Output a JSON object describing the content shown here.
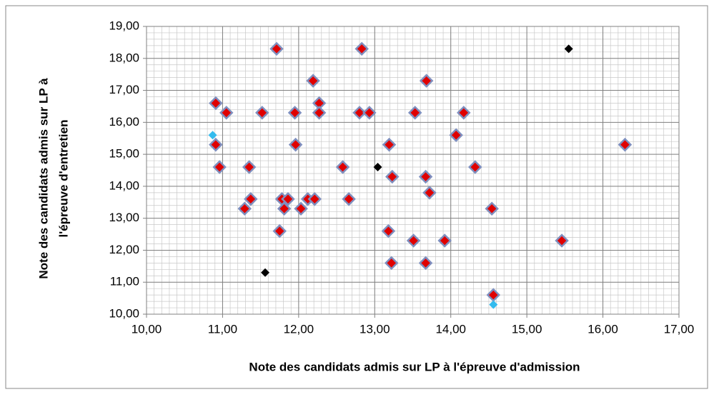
{
  "chart_data": {
    "type": "scatter",
    "xlabel": "Note des candidats admis sur LP à l'épreuve d'admission",
    "ylabel": [
      "Note des candidats admis sur LP à",
      "l'épreuve d'entretien"
    ],
    "xlim": [
      10,
      17
    ],
    "ylim": [
      10,
      19
    ],
    "xticks": [
      {
        "value": 10,
        "label": "10,00"
      },
      {
        "value": 11,
        "label": "11,00"
      },
      {
        "value": 12,
        "label": "12,00"
      },
      {
        "value": 13,
        "label": "13,00"
      },
      {
        "value": 14,
        "label": "14,00"
      },
      {
        "value": 15,
        "label": "15,00"
      },
      {
        "value": 16,
        "label": "16,00"
      },
      {
        "value": 17,
        "label": "17,00"
      }
    ],
    "yticks": [
      {
        "value": 10,
        "label": "10,00"
      },
      {
        "value": 11,
        "label": "11,00"
      },
      {
        "value": 12,
        "label": "12,00"
      },
      {
        "value": 13,
        "label": "13,00"
      },
      {
        "value": 14,
        "label": "14,00"
      },
      {
        "value": 15,
        "label": "15,00"
      },
      {
        "value": 16,
        "label": "16,00"
      },
      {
        "value": 17,
        "label": "17,00"
      },
      {
        "value": 18,
        "label": "18,00"
      },
      {
        "value": 19,
        "label": "19,00"
      }
    ],
    "grid": true,
    "minor_grid": {
      "x": 0.1,
      "y": 0.2
    },
    "series": [
      {
        "color": "#e00000",
        "edge_color": "#7f8fbf",
        "x": [
          11.71,
          12.83,
          12.19,
          13.68,
          10.91,
          12.27,
          11.05,
          11.52,
          11.95,
          12.27,
          12.8,
          12.93,
          13.53,
          14.17,
          14.07,
          10.91,
          11.96,
          13.19,
          16.29,
          10.96,
          11.35,
          12.58,
          14.32,
          13.23,
          13.67,
          13.72,
          11.37,
          11.78,
          11.86,
          12.12,
          12.21,
          12.66,
          11.29,
          11.81,
          12.03,
          14.54,
          11.75,
          13.18,
          13.51,
          13.92,
          15.46,
          13.22,
          13.67,
          14.56
        ],
        "values": [
          18.3,
          18.3,
          17.3,
          17.3,
          16.6,
          16.6,
          16.3,
          16.3,
          16.3,
          16.3,
          16.3,
          16.3,
          16.3,
          16.3,
          15.6,
          15.3,
          15.3,
          15.3,
          15.3,
          14.6,
          14.6,
          14.6,
          14.6,
          14.3,
          14.3,
          13.8,
          13.6,
          13.6,
          13.6,
          13.6,
          13.6,
          13.6,
          13.3,
          13.3,
          13.3,
          13.3,
          12.6,
          12.6,
          12.3,
          12.3,
          12.3,
          11.6,
          11.6,
          10.6
        ]
      },
      {
        "color": "#000000",
        "x": [
          15.55,
          13.04,
          11.56
        ],
        "values": [
          18.3,
          14.6,
          11.3
        ]
      },
      {
        "color": "#33bbee",
        "x": [
          10.87,
          14.56
        ],
        "values": [
          15.6,
          10.3
        ]
      }
    ]
  }
}
